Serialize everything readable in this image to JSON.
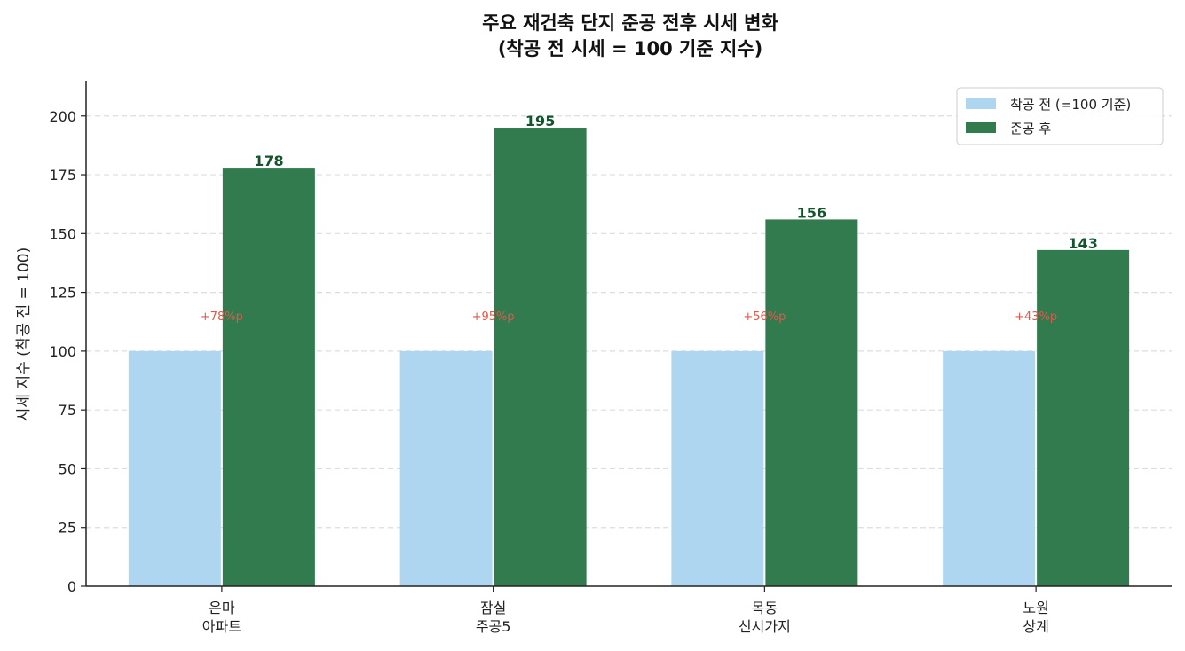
{
  "chart_data": {
    "type": "bar",
    "title": [
      "주요 재건축 단지 준공 전후 시세 변화",
      "(착공 전 시세 = 100 기준 지수)"
    ],
    "xlabel": "",
    "ylabel": "시세 지수 (착공 전 = 100)",
    "categories": [
      [
        "은마",
        "아파트"
      ],
      [
        "잠실",
        "주공5"
      ],
      [
        "목동",
        "신시가지"
      ],
      [
        "노원",
        "상계"
      ]
    ],
    "series": [
      {
        "name": "착공 전 (=100 기준)",
        "values": [
          100,
          100,
          100,
          100
        ],
        "color": "#aed6f0"
      },
      {
        "name": "준공 후",
        "values": [
          178,
          195,
          156,
          143
        ],
        "color": "#327b4f"
      }
    ],
    "data_labels": [
      "178",
      "195",
      "156",
      "143"
    ],
    "annotations": [
      "+78%p",
      "+95%p",
      "+56%p",
      "+43%p"
    ],
    "annotation_value": 115,
    "ylim": [
      0,
      215
    ],
    "yticks": [
      0,
      25,
      50,
      75,
      100,
      125,
      150,
      175,
      200
    ],
    "grid": "y-dashed",
    "legend": "top-right",
    "colors": {
      "axis": "#222222",
      "grid": "#dddddd",
      "annotation": "#e0584b",
      "data_label": "#14532d"
    }
  }
}
